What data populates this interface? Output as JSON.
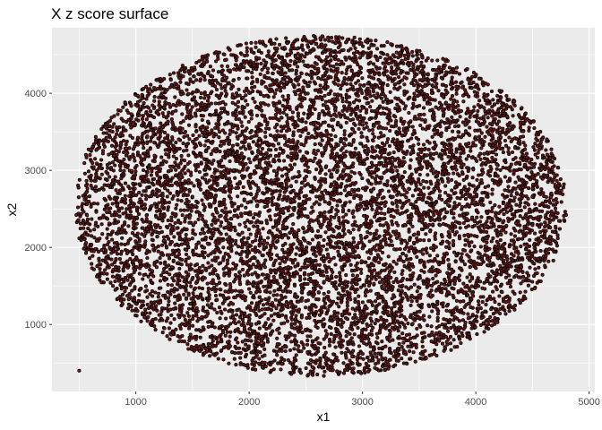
{
  "chart_data": {
    "type": "scatter",
    "title": "X z score surface",
    "xlabel": "x1",
    "ylabel": "x2",
    "xlim": [
      260,
      5050
    ],
    "ylim": [
      130,
      4850
    ],
    "x_ticks": [
      1000,
      2000,
      3000,
      4000,
      5000
    ],
    "y_ticks": [
      1000,
      2000,
      3000,
      4000
    ],
    "x_tick_labels": [
      "1000",
      "2000",
      "3000",
      "4000",
      "5000"
    ],
    "y_tick_labels": [
      "1000",
      "2000",
      "3000",
      "4000"
    ],
    "grid": true,
    "legend": "none",
    "point_fill": "#6b1414",
    "point_stroke": "#000000",
    "panel_background": "#ebebeb",
    "gridline_color": "#ffffff",
    "point_count_approx": 9000,
    "point_cloud": {
      "shape": "ellipse",
      "center": [
        2650,
        2560
      ],
      "x_extent": [
        460,
        4800
      ],
      "y_extent": [
        330,
        4750
      ]
    },
    "outliers": [
      {
        "x": 500,
        "y": 400
      }
    ]
  }
}
